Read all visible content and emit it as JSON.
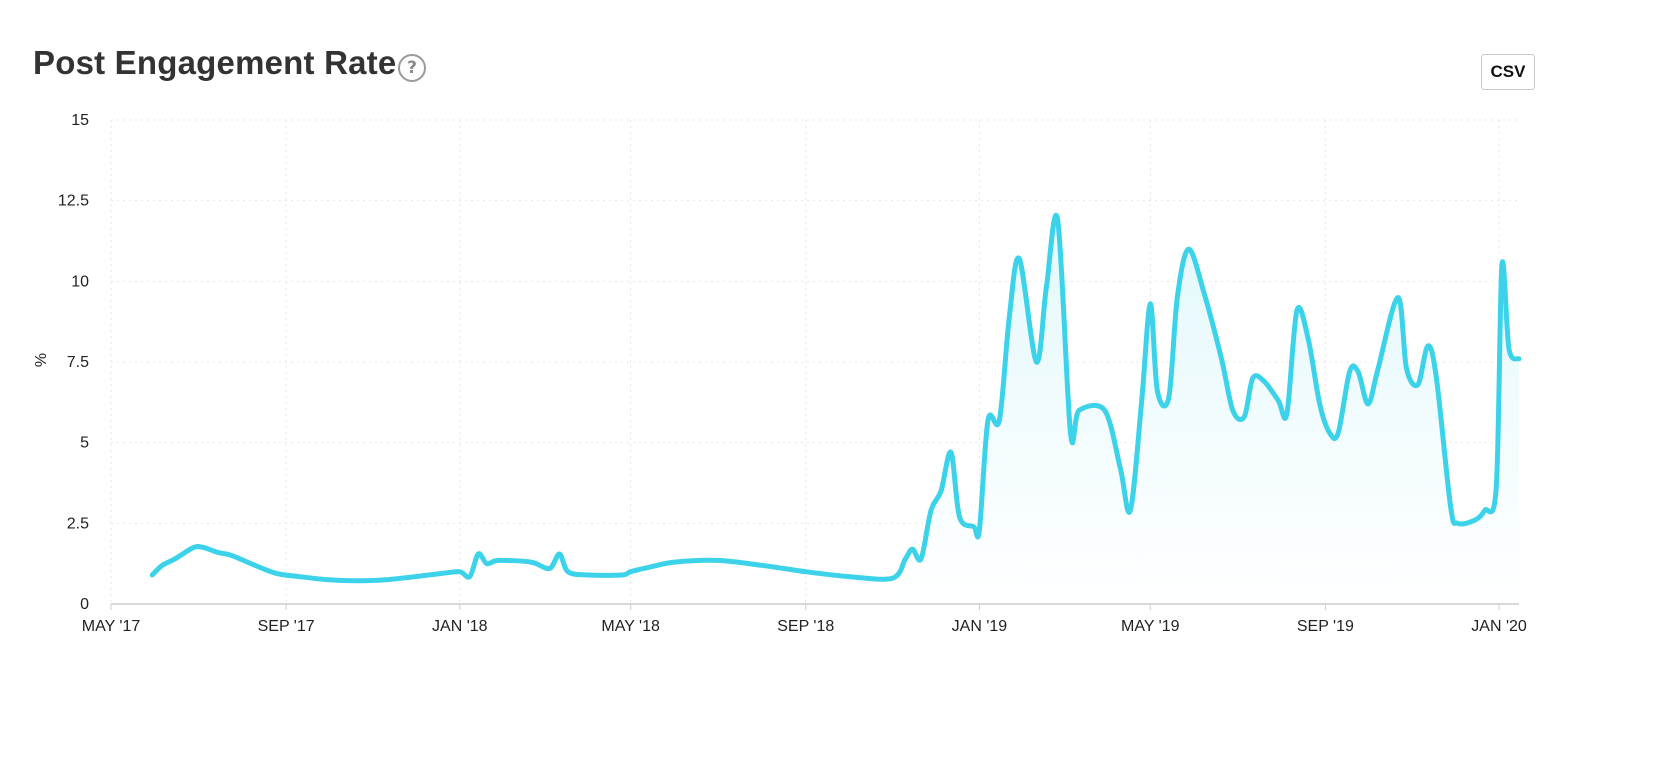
{
  "header": {
    "title": "Post Engagement Rate",
    "help_icon": "question-circle-icon",
    "help_glyph": "?",
    "csv_label": "CSV"
  },
  "colors": {
    "line": "#3cd3ea",
    "fill_top": "#e3f8fc",
    "grid": "#e6e6e6",
    "axis": "#cccccc"
  },
  "chart_data": {
    "type": "area",
    "title": "Post Engagement Rate",
    "xlabel": "",
    "ylabel": "%",
    "ylim": [
      0,
      15
    ],
    "xlim": [
      "2017-05-01",
      "2020-01-15"
    ],
    "y_ticks": [
      {
        "value": 0,
        "label": "0"
      },
      {
        "value": 2.5,
        "label": "2.5"
      },
      {
        "value": 5,
        "label": "5"
      },
      {
        "value": 7.5,
        "label": "7.5"
      },
      {
        "value": 10,
        "label": "10"
      },
      {
        "value": 12.5,
        "label": "12.5"
      },
      {
        "value": 15,
        "label": "15"
      }
    ],
    "x_ticks": [
      {
        "date": "2017-05-01",
        "label": "MAY '17"
      },
      {
        "date": "2017-09-01",
        "label": "SEP '17"
      },
      {
        "date": "2018-01-01",
        "label": "JAN '18"
      },
      {
        "date": "2018-05-01",
        "label": "MAY '18"
      },
      {
        "date": "2018-09-01",
        "label": "SEP '18"
      },
      {
        "date": "2019-01-01",
        "label": "JAN '19"
      },
      {
        "date": "2019-05-01",
        "label": "MAY '19"
      },
      {
        "date": "2019-09-01",
        "label": "SEP '19"
      },
      {
        "date": "2020-01-01",
        "label": "JAN '20"
      }
    ],
    "grid": true,
    "legend": "none",
    "fill_from": "2018-10-15",
    "series": [
      {
        "points": [
          [
            "2017-05-30",
            0.9
          ],
          [
            "2017-06-06",
            1.2
          ],
          [
            "2017-06-15",
            1.4
          ],
          [
            "2017-06-28",
            1.75
          ],
          [
            "2017-07-05",
            1.75
          ],
          [
            "2017-07-15",
            1.6
          ],
          [
            "2017-07-25",
            1.5
          ],
          [
            "2017-08-10",
            1.2
          ],
          [
            "2017-08-25",
            0.95
          ],
          [
            "2017-09-10",
            0.85
          ],
          [
            "2017-10-01",
            0.75
          ],
          [
            "2017-10-20",
            0.72
          ],
          [
            "2017-11-10",
            0.75
          ],
          [
            "2017-12-01",
            0.85
          ],
          [
            "2017-12-20",
            0.95
          ],
          [
            "2018-01-01",
            1.0
          ],
          [
            "2018-01-08",
            0.85
          ],
          [
            "2018-01-14",
            1.55
          ],
          [
            "2018-01-20",
            1.25
          ],
          [
            "2018-01-28",
            1.35
          ],
          [
            "2018-02-20",
            1.3
          ],
          [
            "2018-03-05",
            1.1
          ],
          [
            "2018-03-12",
            1.55
          ],
          [
            "2018-03-18",
            1.0
          ],
          [
            "2018-04-01",
            0.9
          ],
          [
            "2018-04-25",
            0.9
          ],
          [
            "2018-05-01",
            1.0
          ],
          [
            "2018-05-15",
            1.15
          ],
          [
            "2018-06-01",
            1.3
          ],
          [
            "2018-07-01",
            1.35
          ],
          [
            "2018-08-01",
            1.2
          ],
          [
            "2018-09-01",
            1.0
          ],
          [
            "2018-10-01",
            0.85
          ],
          [
            "2018-11-01",
            0.8
          ],
          [
            "2018-11-10",
            1.4
          ],
          [
            "2018-11-15",
            1.7
          ],
          [
            "2018-11-21",
            1.4
          ],
          [
            "2018-11-28",
            2.9
          ],
          [
            "2018-12-05",
            3.5
          ],
          [
            "2018-12-12",
            4.7
          ],
          [
            "2018-12-18",
            2.7
          ],
          [
            "2018-12-28",
            2.4
          ],
          [
            "2019-01-01",
            2.3
          ],
          [
            "2019-01-07",
            5.7
          ],
          [
            "2019-01-15",
            5.7
          ],
          [
            "2019-01-22",
            8.9
          ],
          [
            "2019-01-29",
            10.7
          ],
          [
            "2019-02-10",
            7.5
          ],
          [
            "2019-02-17",
            9.8
          ],
          [
            "2019-02-25",
            11.9
          ],
          [
            "2019-03-06",
            5.3
          ],
          [
            "2019-03-12",
            6.0
          ],
          [
            "2019-03-30",
            6.0
          ],
          [
            "2019-04-10",
            4.2
          ],
          [
            "2019-04-17",
            2.9
          ],
          [
            "2019-04-25",
            6.3
          ],
          [
            "2019-05-01",
            9.3
          ],
          [
            "2019-05-06",
            6.6
          ],
          [
            "2019-05-14",
            6.4
          ],
          [
            "2019-05-20",
            9.5
          ],
          [
            "2019-05-28",
            11.0
          ],
          [
            "2019-06-08",
            9.6
          ],
          [
            "2019-06-20",
            7.6
          ],
          [
            "2019-06-28",
            6.0
          ],
          [
            "2019-07-06",
            5.8
          ],
          [
            "2019-07-12",
            7.0
          ],
          [
            "2019-07-20",
            6.9
          ],
          [
            "2019-07-30",
            6.3
          ],
          [
            "2019-08-05",
            5.9
          ],
          [
            "2019-08-12",
            9.1
          ],
          [
            "2019-08-20",
            8.2
          ],
          [
            "2019-08-28",
            6.2
          ],
          [
            "2019-09-04",
            5.3
          ],
          [
            "2019-09-10",
            5.3
          ],
          [
            "2019-09-18",
            7.2
          ],
          [
            "2019-09-24",
            7.2
          ],
          [
            "2019-10-01",
            6.2
          ],
          [
            "2019-10-08",
            7.3
          ],
          [
            "2019-10-22",
            9.5
          ],
          [
            "2019-10-28",
            7.3
          ],
          [
            "2019-11-05",
            6.8
          ],
          [
            "2019-11-12",
            8.0
          ],
          [
            "2019-11-18",
            7.0
          ],
          [
            "2019-11-28",
            3.0
          ],
          [
            "2019-12-03",
            2.5
          ],
          [
            "2019-12-15",
            2.6
          ],
          [
            "2019-12-22",
            2.9
          ],
          [
            "2019-12-30",
            3.6
          ],
          [
            "2020-01-03",
            10.5
          ],
          [
            "2020-01-08",
            7.9
          ],
          [
            "2020-01-15",
            7.6
          ]
        ]
      }
    ]
  }
}
